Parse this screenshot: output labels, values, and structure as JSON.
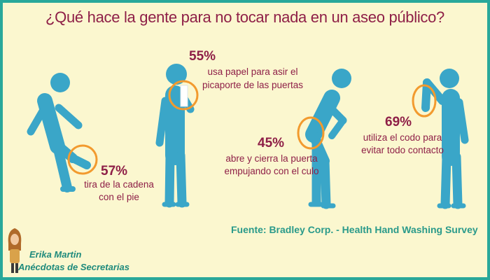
{
  "title": "¿Qué hace la gente para no tocar nada en un aseo público?",
  "items": [
    {
      "percent": "57%",
      "caption_line1": "tira de la cadena",
      "caption_line2": "con el pie"
    },
    {
      "percent": "55%",
      "caption_line1": "usa papel para asir el",
      "caption_line2": "picaporte de las puertas"
    },
    {
      "percent": "45%",
      "caption_line1": "abre y cierra la puerta",
      "caption_line2": "empujando con el culo"
    },
    {
      "percent": "69%",
      "caption_line1": "utiliza el codo para",
      "caption_line2": "evitar todo contacto"
    }
  ],
  "source": "Fuente: Bradley Corp. - Health Hand Washing Survey",
  "author": {
    "name": "Erika Martin",
    "blog": "Anécdotas de Secretarias"
  },
  "colors": {
    "frame": "#29a89a",
    "background": "#fbf7cf",
    "figure": "#3aa6c8",
    "highlight": "#f29a2e",
    "text": "#8e1f47",
    "source": "#2a9a8a"
  }
}
